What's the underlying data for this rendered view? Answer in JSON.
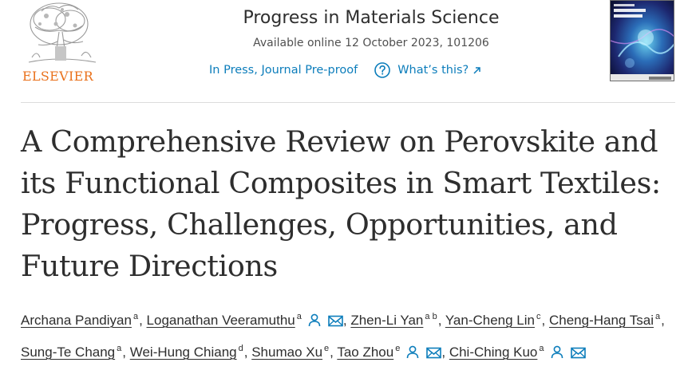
{
  "publisher": {
    "name": "ELSEVIER",
    "logo_icon": "elsevier-tree-icon"
  },
  "journal": {
    "name": "Progress in Materials Science",
    "available": "Available online 12 October 2023, 101206",
    "status": "In Press, Journal Pre-proof",
    "whats_this": "What’s this?",
    "help_icon": "question-circle-icon",
    "external_icon": "arrow-up-right-icon",
    "cover_icon": "journal-cover-image",
    "accent_color": "#0c7dbb",
    "publisher_color": "#e9711c"
  },
  "article": {
    "title": "A Comprehensive Review on Perovskite and its Functional Composites in Smart Textiles: Progress, Challenges, Opportunities, and Future Directions"
  },
  "authors": [
    {
      "name": "Archana Pandiyan",
      "aff": "a",
      "profile": false,
      "email": false,
      "sep": ","
    },
    {
      "name": "Loganathan Veeramuthu",
      "aff": "a",
      "profile": true,
      "email": true,
      "sep": ","
    },
    {
      "name": "Zhen-Li Yan",
      "aff": "a b",
      "profile": false,
      "email": false,
      "sep": ","
    },
    {
      "name": "Yan-Cheng Lin",
      "aff": "c",
      "profile": false,
      "email": false,
      "sep": ","
    },
    {
      "name": "Cheng-Hang Tsai",
      "aff": "a",
      "profile": false,
      "email": false,
      "sep": ","
    },
    {
      "name": "Sung-Te Chang",
      "aff": "a",
      "profile": false,
      "email": false,
      "sep": ","
    },
    {
      "name": "Wei-Hung Chiang",
      "aff": "d",
      "profile": false,
      "email": false,
      "sep": ","
    },
    {
      "name": "Shumao Xu",
      "aff": "e",
      "profile": false,
      "email": false,
      "sep": ","
    },
    {
      "name": "Tao Zhou",
      "aff": "e",
      "profile": true,
      "email": true,
      "sep": ","
    },
    {
      "name": "Chi-Ching Kuo",
      "aff": "a",
      "profile": true,
      "email": true,
      "sep": ""
    }
  ]
}
